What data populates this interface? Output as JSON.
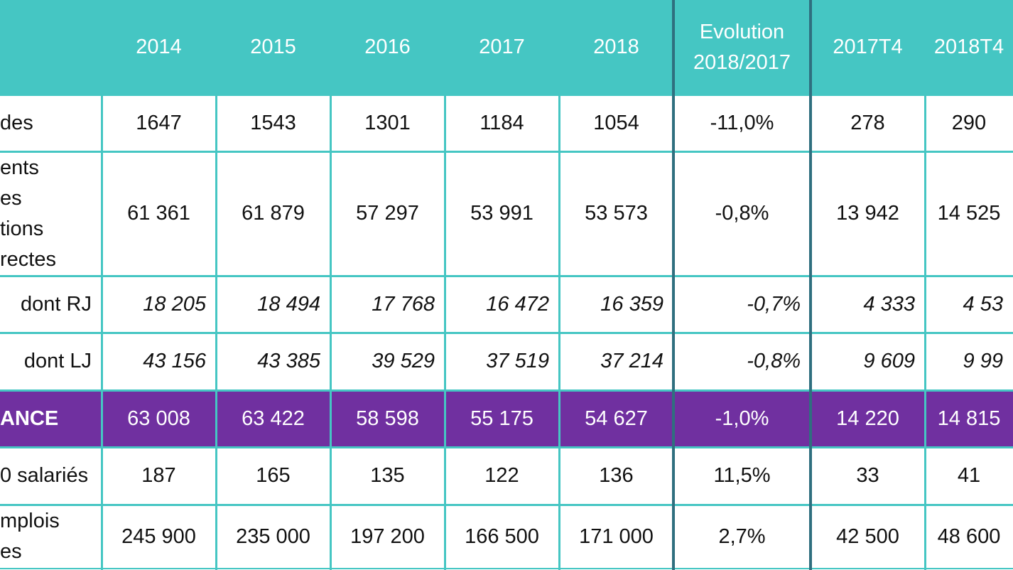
{
  "header": {
    "columns": [
      "2014",
      "2015",
      "2016",
      "2017",
      "2018",
      "Evolution\n2018/2017",
      "2017T4",
      "2018T4"
    ]
  },
  "rows": [
    {
      "label": "des",
      "values": [
        "1647",
        "1543",
        "1301",
        "1184",
        "1054",
        "-11,0%",
        "278",
        "290"
      ]
    },
    {
      "label": "ents\nes\ntions\nrectes",
      "values": [
        "61 361",
        "61 879",
        "57 297",
        "53 991",
        "53 573",
        "-0,8%",
        "13 942",
        "14 525"
      ]
    },
    {
      "label": "dont RJ",
      "values": [
        "18 205",
        "18 494",
        "17 768",
        "16 472",
        "16 359",
        "-0,7%",
        "4 333",
        "4 53"
      ]
    },
    {
      "label": "dont LJ",
      "values": [
        "43 156",
        "43 385",
        "39 529",
        "37 519",
        "37 214",
        "-0,8%",
        "9 609",
        "9 99"
      ]
    },
    {
      "label": "ANCE",
      "values": [
        "63 008",
        "63 422",
        "58 598",
        "55 175",
        "54 627",
        "-1,0%",
        "14 220",
        "14 815"
      ]
    },
    {
      "label": "0 salariés",
      "values": [
        "187",
        "165",
        "135",
        "122",
        "136",
        "11,5%",
        "33",
        "41"
      ]
    },
    {
      "label": "mplois\nes",
      "values": [
        "245 900",
        "235 000",
        "197 200",
        "166 500",
        "171 000",
        "2,7%",
        "42 500",
        "48 600"
      ]
    }
  ],
  "colors": {
    "header": "#45c6c3",
    "total_row": "#7030a0",
    "grid": "#45c6c3",
    "separator": "#2f6f7f"
  }
}
